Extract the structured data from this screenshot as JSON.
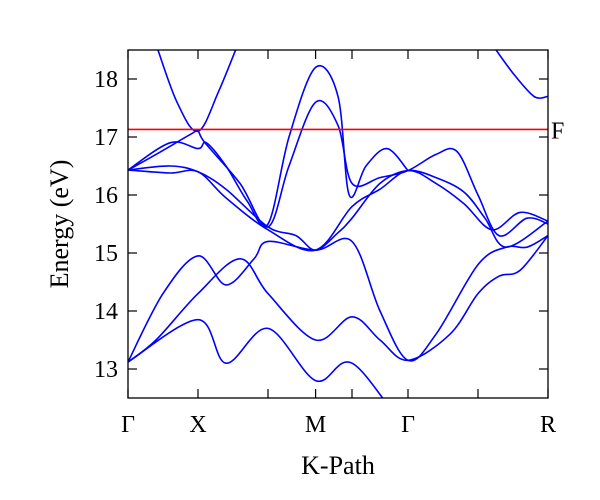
{
  "chart_data": {
    "type": "line",
    "xlabel": "K-Path",
    "ylabel": "Energy (eV)",
    "ylim": [
      12.5,
      18.5
    ],
    "y_ticks": [
      13,
      14,
      15,
      16,
      17,
      18
    ],
    "x_ticks": [
      {
        "label": "Γ",
        "k": 0.0
      },
      {
        "label": "X",
        "k": 0.5
      },
      {
        "label": "M",
        "k": 1.34
      },
      {
        "label": "Γ",
        "k": 2.0
      },
      {
        "label": "R",
        "k": 3.0
      }
    ],
    "minor_x_ticks": [
      1.0,
      1.6,
      2.5
    ],
    "xlim": [
      0.0,
      3.0
    ],
    "fermi": {
      "label": "F",
      "energy": 17.13,
      "color": "#ff0000"
    },
    "band_color": "#0000ff",
    "grid": false,
    "series": [
      {
        "x": [
          0.0,
          0.5,
          0.7,
          1.0,
          1.34,
          1.6,
          2.0,
          2.3,
          2.6,
          2.85,
          3.0
        ],
        "y": [
          13.12,
          13.85,
          13.1,
          13.7,
          12.8,
          13.1,
          12.0,
          12.0,
          12.0,
          12.0,
          12.0
        ]
      },
      {
        "x": [
          0.0,
          0.2,
          0.5,
          0.8,
          1.0,
          1.34,
          1.6,
          1.8,
          2.0,
          2.3,
          2.5,
          2.65,
          2.8,
          3.0
        ],
        "y": [
          13.12,
          13.5,
          14.3,
          14.9,
          14.3,
          13.5,
          13.9,
          13.5,
          13.15,
          13.6,
          14.3,
          14.6,
          14.7,
          15.3
        ]
      },
      {
        "x": [
          0.0,
          0.25,
          0.5,
          0.7,
          0.9,
          1.0,
          1.34,
          1.6,
          1.8,
          2.0,
          2.2,
          2.5,
          2.7,
          2.85,
          3.0
        ],
        "y": [
          13.12,
          14.3,
          14.95,
          14.45,
          14.9,
          15.2,
          15.05,
          15.2,
          14.0,
          13.15,
          13.6,
          14.8,
          15.1,
          15.1,
          15.3
        ]
      },
      {
        "x": [
          0.0,
          0.3,
          0.5,
          0.7,
          1.0,
          1.34,
          1.6,
          1.8,
          2.0,
          2.2,
          2.4,
          2.6,
          2.8,
          3.0
        ],
        "y": [
          16.43,
          16.38,
          16.4,
          15.95,
          15.4,
          15.05,
          15.8,
          16.1,
          16.42,
          16.2,
          15.85,
          15.4,
          15.7,
          15.55
        ]
      },
      {
        "x": [
          0.0,
          0.3,
          0.5,
          0.7,
          1.0,
          1.2,
          1.34,
          1.5,
          1.6,
          1.8,
          2.0,
          2.2,
          2.4,
          2.55,
          2.7,
          3.0
        ],
        "y": [
          16.43,
          16.5,
          16.4,
          16.1,
          15.45,
          15.3,
          15.05,
          15.35,
          15.6,
          16.2,
          16.42,
          16.3,
          16.05,
          15.6,
          15.1,
          15.55
        ]
      },
      {
        "x": [
          0.0,
          0.2,
          0.45,
          0.5,
          0.55,
          0.8,
          1.0,
          1.15,
          1.34,
          1.5,
          1.6,
          1.8,
          2.0,
          2.2,
          2.35,
          2.5,
          2.65,
          2.85,
          3.0
        ],
        "y": [
          16.43,
          16.7,
          17.05,
          17.1,
          16.9,
          16.2,
          15.45,
          16.5,
          17.6,
          17.2,
          16.2,
          16.3,
          16.42,
          16.7,
          16.75,
          16.0,
          15.3,
          15.6,
          15.5
        ]
      },
      {
        "x": [
          0.0,
          0.3,
          0.5,
          0.56,
          0.7,
          0.85,
          1.0,
          1.15,
          1.34,
          1.5,
          1.58,
          1.7,
          1.85,
          2.0
        ],
        "y": [
          16.43,
          16.9,
          16.8,
          16.9,
          16.5,
          15.9,
          15.5,
          17.0,
          18.2,
          17.7,
          16.0,
          16.5,
          16.8,
          16.42
        ]
      },
      {
        "x": [
          0.2,
          0.35,
          0.5,
          0.65,
          0.85
        ],
        "y": [
          18.6,
          17.6,
          17.1,
          17.8,
          19.0
        ]
      },
      {
        "x": [
          2.6,
          2.75,
          2.9,
          3.0
        ],
        "y": [
          18.6,
          18.1,
          17.7,
          17.7
        ]
      }
    ]
  }
}
